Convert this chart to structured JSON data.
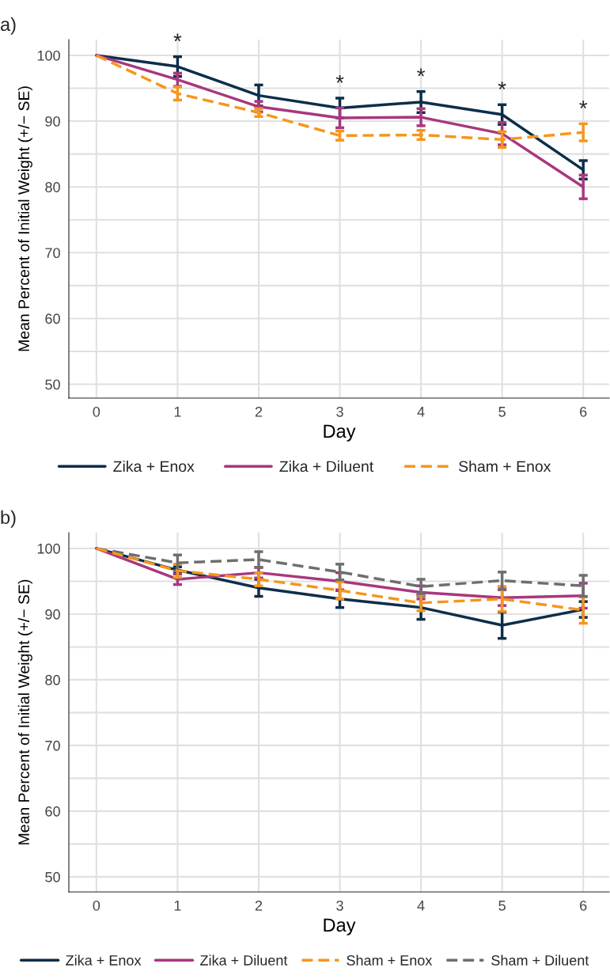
{
  "chart_data": [
    {
      "type": "line",
      "title": "a)",
      "xlabel": "Day",
      "ylabel": "Mean Percent of Initial Weight (+/− SE)",
      "x": [
        0,
        1,
        2,
        3,
        4,
        5,
        6
      ],
      "xlim": [
        -0.34,
        6.32
      ],
      "xticks": [
        0,
        1,
        2,
        3,
        4,
        5,
        6
      ],
      "ylim": [
        47.9,
        102.4
      ],
      "yticks": [
        50,
        {
          "value": 55,
          "label": null
        },
        60,
        {
          "value": 65,
          "label": null
        },
        70,
        {
          "value": 75,
          "label": null
        },
        80,
        {
          "value": 85,
          "label": null
        },
        90,
        {
          "value": 95,
          "label": null
        },
        100
      ],
      "grid": true,
      "legend": "bottom",
      "series": [
        {
          "name": "Zika + Enox",
          "color": "#0d2e4a",
          "line_style": "solid",
          "values": [
            100,
            98.3,
            93.9,
            92.0,
            92.9,
            91.0,
            82.6
          ],
          "errors": [
            null,
            1.5,
            1.6,
            1.5,
            1.6,
            1.5,
            1.4
          ]
        },
        {
          "name": "Zika + Diluent",
          "color": "#a8377f",
          "line_style": "solid",
          "values": [
            100,
            96.3,
            92.2,
            90.5,
            90.6,
            88.1,
            80.0
          ],
          "errors": [
            null,
            1.0,
            0.8,
            1.5,
            1.3,
            1.7,
            1.8
          ]
        },
        {
          "name": "Sham + Enox",
          "color": "#f5961e",
          "line_style": "dashed",
          "values": [
            100,
            94.2,
            91.3,
            87.8,
            87.9,
            87.2,
            88.3
          ],
          "errors": [
            null,
            1.0,
            0.6,
            0.7,
            0.7,
            1.2,
            1.3
          ]
        }
      ],
      "annotations": [
        {
          "text": "*",
          "x": 1,
          "y": 99.8
        },
        {
          "text": "*",
          "x": 3,
          "y": 93.5
        },
        {
          "text": "*",
          "x": 4,
          "y": 94.5
        },
        {
          "text": "*",
          "x": 5,
          "y": 92.5
        },
        {
          "text": "*",
          "x": 6,
          "y": 89.6
        }
      ]
    },
    {
      "type": "line",
      "title": "b)",
      "xlabel": "Day",
      "ylabel": "Mean Percent of Initial Weight (+/− SE)",
      "x": [
        0,
        1,
        2,
        3,
        4,
        5,
        6
      ],
      "xlim": [
        -0.34,
        6.32
      ],
      "xticks": [
        0,
        1,
        2,
        3,
        4,
        5,
        6
      ],
      "ylim": [
        47.7,
        102.4
      ],
      "yticks": [
        50,
        {
          "value": 55,
          "label": null
        },
        60,
        {
          "value": 65,
          "label": null
        },
        70,
        {
          "value": 75,
          "label": null
        },
        80,
        {
          "value": 85,
          "label": null
        },
        90,
        {
          "value": 95,
          "label": null
        },
        100
      ],
      "grid": true,
      "legend": "bottom",
      "series": [
        {
          "name": "Zika + Enox",
          "color": "#0d2e4a",
          "line_style": "solid",
          "values": [
            100,
            96.7,
            94.0,
            92.3,
            91.0,
            88.3,
            90.7
          ],
          "errors": [
            null,
            0.5,
            1.3,
            1.3,
            1.8,
            2.0,
            1.2
          ]
        },
        {
          "name": "Zika + Diluent",
          "color": "#a8377f",
          "line_style": "solid",
          "values": [
            100,
            95.3,
            96.3,
            95.0,
            93.3,
            92.5,
            92.8
          ],
          "errors": [
            null,
            0.8,
            0.8,
            1.3,
            1.0,
            1.2,
            1.9
          ]
        },
        {
          "name": "Sham + Enox",
          "color": "#f5961e",
          "line_style": "dashed",
          "values": [
            100,
            96.6,
            95.3,
            93.6,
            91.7,
            92.3,
            90.6
          ],
          "errors": [
            null,
            1.0,
            1.0,
            1.3,
            1.2,
            1.9,
            2.0
          ]
        },
        {
          "name": "Sham + Diluent",
          "color": "#6e6e6e",
          "line_style": "dashed",
          "values": [
            100,
            97.8,
            98.3,
            96.4,
            94.2,
            95.1,
            94.3
          ],
          "errors": [
            null,
            1.2,
            1.2,
            1.2,
            1.1,
            1.3,
            1.6
          ]
        }
      ]
    }
  ]
}
